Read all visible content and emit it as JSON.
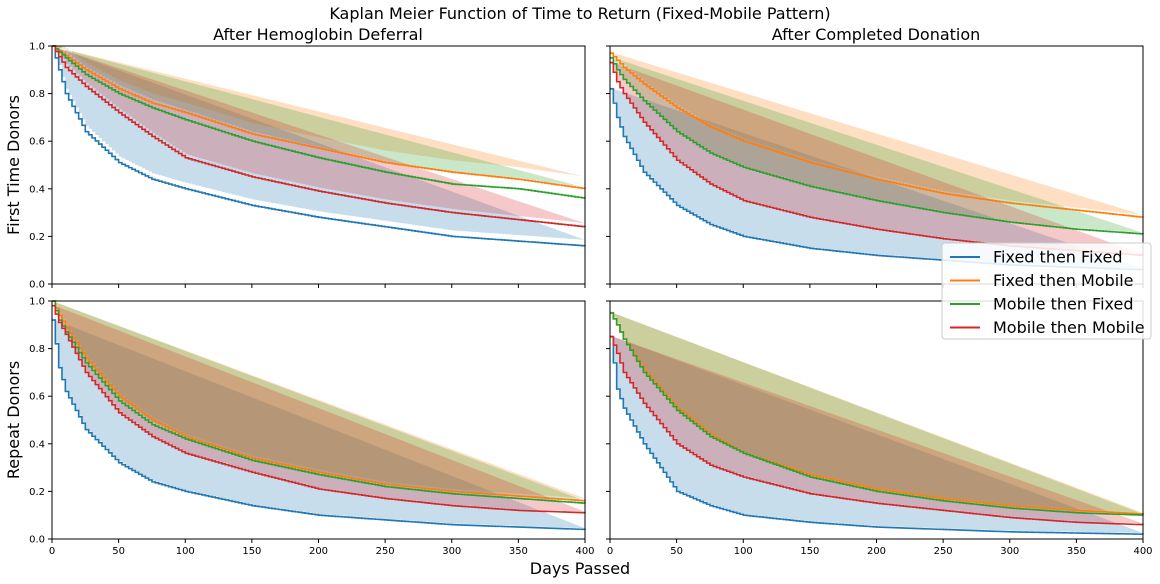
{
  "figure": {
    "suptitle": "Kaplan Meier Function of Time to Return (Fixed-Mobile Pattern)",
    "x_label": "Days Passed",
    "row_labels": [
      "First Time Donors",
      "Repeat Donors"
    ],
    "col_titles": [
      "After Hemoglobin Deferral",
      "After Completed Donation"
    ],
    "legend": {
      "placement": "right, center of figure",
      "entries": [
        {
          "label": "Fixed then Fixed",
          "color": "#1f77b4"
        },
        {
          "label": "Fixed then Mobile",
          "color": "#ff7f0e"
        },
        {
          "label": "Mobile then Fixed",
          "color": "#2ca02c"
        },
        {
          "label": "Mobile then Mobile",
          "color": "#d62728"
        }
      ]
    },
    "x_ticks": [
      "0",
      "50",
      "100",
      "150",
      "200",
      "250",
      "300",
      "350",
      "400"
    ],
    "y_ticks": [
      "0.0",
      "0.2",
      "0.4",
      "0.6",
      "0.8",
      "1.0"
    ]
  },
  "chart_data": [
    {
      "type": "line",
      "row": "First Time Donors",
      "title": "After Hemoglobin Deferral",
      "xlabel": "",
      "ylabel": "First Time Donors",
      "xlim": [
        0,
        400
      ],
      "ylim": [
        0,
        1
      ],
      "step": true,
      "confidence_bands": true,
      "x": [
        0,
        10,
        25,
        50,
        75,
        100,
        150,
        200,
        250,
        300,
        350,
        400
      ],
      "series": [
        {
          "name": "Fixed then Fixed",
          "color": "#1f77b4",
          "values": [
            1.0,
            0.8,
            0.64,
            0.51,
            0.44,
            0.4,
            0.33,
            0.28,
            0.24,
            0.2,
            0.18,
            0.16
          ],
          "band": [
            0.02,
            0.02,
            0.025,
            0.025,
            0.025,
            0.025,
            0.025,
            0.025,
            0.025,
            0.025,
            0.025,
            0.025
          ]
        },
        {
          "name": "Fixed then Mobile",
          "color": "#ff7f0e",
          "values": [
            1.0,
            0.96,
            0.9,
            0.82,
            0.76,
            0.72,
            0.63,
            0.57,
            0.51,
            0.47,
            0.44,
            0.4
          ],
          "band": [
            0.02,
            0.03,
            0.03,
            0.035,
            0.04,
            0.04,
            0.045,
            0.045,
            0.05,
            0.05,
            0.05,
            0.05
          ]
        },
        {
          "name": "Mobile then Fixed",
          "color": "#2ca02c",
          "values": [
            1.0,
            0.95,
            0.88,
            0.8,
            0.74,
            0.69,
            0.6,
            0.53,
            0.47,
            0.42,
            0.4,
            0.36
          ],
          "band": [
            0.02,
            0.025,
            0.03,
            0.035,
            0.035,
            0.04,
            0.04,
            0.045,
            0.045,
            0.045,
            0.045,
            0.045
          ]
        },
        {
          "name": "Mobile then Mobile",
          "color": "#d62728",
          "values": [
            1.0,
            0.91,
            0.83,
            0.72,
            0.62,
            0.53,
            0.45,
            0.39,
            0.34,
            0.3,
            0.27,
            0.24
          ],
          "band": [
            0.01,
            0.015,
            0.015,
            0.015,
            0.015,
            0.015,
            0.015,
            0.015,
            0.015,
            0.015,
            0.015,
            0.015
          ]
        }
      ]
    },
    {
      "type": "line",
      "row": "First Time Donors",
      "title": "After Completed Donation",
      "xlabel": "",
      "ylabel": "",
      "xlim": [
        0,
        400
      ],
      "ylim": [
        0,
        1
      ],
      "step": true,
      "confidence_bands": true,
      "x": [
        0,
        5,
        10,
        25,
        50,
        75,
        100,
        150,
        200,
        250,
        300,
        350,
        400
      ],
      "series": [
        {
          "name": "Fixed then Fixed",
          "color": "#1f77b4",
          "values": [
            0.82,
            0.7,
            0.62,
            0.47,
            0.33,
            0.25,
            0.2,
            0.15,
            0.12,
            0.1,
            0.08,
            0.07,
            0.06
          ],
          "band": [
            0.005,
            0.005,
            0.005,
            0.005,
            0.005,
            0.005,
            0.005,
            0.005,
            0.005,
            0.005,
            0.005,
            0.005,
            0.005
          ]
        },
        {
          "name": "Fixed then Mobile",
          "color": "#ff7f0e",
          "values": [
            0.97,
            0.94,
            0.91,
            0.84,
            0.74,
            0.66,
            0.6,
            0.51,
            0.44,
            0.38,
            0.34,
            0.31,
            0.28
          ],
          "band": [
            0.005,
            0.008,
            0.01,
            0.01,
            0.01,
            0.01,
            0.01,
            0.01,
            0.01,
            0.01,
            0.01,
            0.01,
            0.01
          ]
        },
        {
          "name": "Mobile then Fixed",
          "color": "#2ca02c",
          "values": [
            0.95,
            0.9,
            0.86,
            0.77,
            0.64,
            0.55,
            0.49,
            0.41,
            0.35,
            0.3,
            0.26,
            0.23,
            0.21
          ],
          "band": [
            0.005,
            0.005,
            0.005,
            0.005,
            0.005,
            0.005,
            0.005,
            0.005,
            0.005,
            0.005,
            0.005,
            0.005,
            0.005
          ]
        },
        {
          "name": "Mobile then Mobile",
          "color": "#d62728",
          "values": [
            0.93,
            0.85,
            0.8,
            0.68,
            0.52,
            0.42,
            0.35,
            0.28,
            0.23,
            0.19,
            0.16,
            0.14,
            0.12
          ],
          "band": [
            0.005,
            0.005,
            0.005,
            0.005,
            0.005,
            0.005,
            0.005,
            0.005,
            0.005,
            0.005,
            0.005,
            0.005,
            0.005
          ]
        }
      ]
    },
    {
      "type": "line",
      "row": "Repeat Donors",
      "title": "",
      "xlabel": "",
      "ylabel": "Repeat Donors",
      "xlim": [
        0,
        400
      ],
      "ylim": [
        0,
        1
      ],
      "step": true,
      "confidence_bands": true,
      "x": [
        0,
        5,
        10,
        25,
        50,
        75,
        100,
        150,
        200,
        250,
        300,
        350,
        400
      ],
      "series": [
        {
          "name": "Fixed then Fixed",
          "color": "#1f77b4",
          "values": [
            0.92,
            0.72,
            0.62,
            0.46,
            0.32,
            0.24,
            0.2,
            0.14,
            0.1,
            0.08,
            0.06,
            0.05,
            0.04
          ],
          "band": [
            0.005,
            0.005,
            0.005,
            0.005,
            0.005,
            0.005,
            0.005,
            0.005,
            0.005,
            0.005,
            0.005,
            0.005,
            0.005
          ]
        },
        {
          "name": "Fixed then Mobile",
          "color": "#ff7f0e",
          "values": [
            1.0,
            0.94,
            0.89,
            0.76,
            0.6,
            0.5,
            0.43,
            0.34,
            0.28,
            0.23,
            0.2,
            0.18,
            0.16
          ],
          "band": [
            0.01,
            0.01,
            0.01,
            0.01,
            0.01,
            0.01,
            0.01,
            0.01,
            0.01,
            0.01,
            0.01,
            0.01,
            0.01
          ]
        },
        {
          "name": "Mobile then Fixed",
          "color": "#2ca02c",
          "values": [
            1.0,
            0.92,
            0.87,
            0.74,
            0.58,
            0.48,
            0.42,
            0.33,
            0.27,
            0.22,
            0.19,
            0.17,
            0.15
          ],
          "band": [
            0.01,
            0.01,
            0.01,
            0.01,
            0.01,
            0.01,
            0.01,
            0.01,
            0.01,
            0.01,
            0.01,
            0.01,
            0.01
          ]
        },
        {
          "name": "Mobile then Mobile",
          "color": "#d62728",
          "values": [
            0.98,
            0.91,
            0.86,
            0.7,
            0.53,
            0.43,
            0.36,
            0.28,
            0.21,
            0.17,
            0.14,
            0.12,
            0.11
          ],
          "band": [
            0.005,
            0.005,
            0.005,
            0.005,
            0.005,
            0.005,
            0.005,
            0.005,
            0.005,
            0.005,
            0.005,
            0.005,
            0.005
          ]
        }
      ]
    },
    {
      "type": "line",
      "row": "Repeat Donors",
      "title": "",
      "xlabel": "Days Passed",
      "ylabel": "",
      "xlim": [
        0,
        400
      ],
      "ylim": [
        0,
        1
      ],
      "step": true,
      "confidence_bands": true,
      "x": [
        0,
        5,
        10,
        25,
        50,
        75,
        100,
        150,
        200,
        250,
        300,
        350,
        400
      ],
      "series": [
        {
          "name": "Fixed then Fixed",
          "color": "#1f77b4",
          "values": [
            0.85,
            0.63,
            0.55,
            0.4,
            0.2,
            0.14,
            0.1,
            0.07,
            0.05,
            0.04,
            0.03,
            0.025,
            0.02
          ],
          "band": [
            0.005,
            0.005,
            0.005,
            0.005,
            0.005,
            0.005,
            0.005,
            0.005,
            0.005,
            0.005,
            0.005,
            0.005,
            0.005
          ]
        },
        {
          "name": "Fixed then Mobile",
          "color": "#ff7f0e",
          "values": [
            0.95,
            0.9,
            0.84,
            0.71,
            0.55,
            0.44,
            0.36,
            0.27,
            0.21,
            0.17,
            0.14,
            0.12,
            0.105
          ],
          "band": [
            0.005,
            0.005,
            0.005,
            0.005,
            0.005,
            0.005,
            0.005,
            0.005,
            0.005,
            0.005,
            0.005,
            0.005,
            0.005
          ]
        },
        {
          "name": "Mobile then Fixed",
          "color": "#2ca02c",
          "values": [
            0.95,
            0.9,
            0.84,
            0.7,
            0.54,
            0.43,
            0.36,
            0.26,
            0.2,
            0.16,
            0.13,
            0.11,
            0.1
          ],
          "band": [
            0.005,
            0.005,
            0.005,
            0.005,
            0.005,
            0.005,
            0.005,
            0.005,
            0.005,
            0.005,
            0.005,
            0.005,
            0.005
          ]
        },
        {
          "name": "Mobile then Mobile",
          "color": "#d62728",
          "values": [
            0.85,
            0.78,
            0.7,
            0.57,
            0.4,
            0.31,
            0.26,
            0.19,
            0.15,
            0.12,
            0.09,
            0.07,
            0.06
          ],
          "band": [
            0.005,
            0.005,
            0.005,
            0.005,
            0.005,
            0.005,
            0.005,
            0.005,
            0.005,
            0.005,
            0.005,
            0.005,
            0.005
          ]
        }
      ]
    }
  ]
}
